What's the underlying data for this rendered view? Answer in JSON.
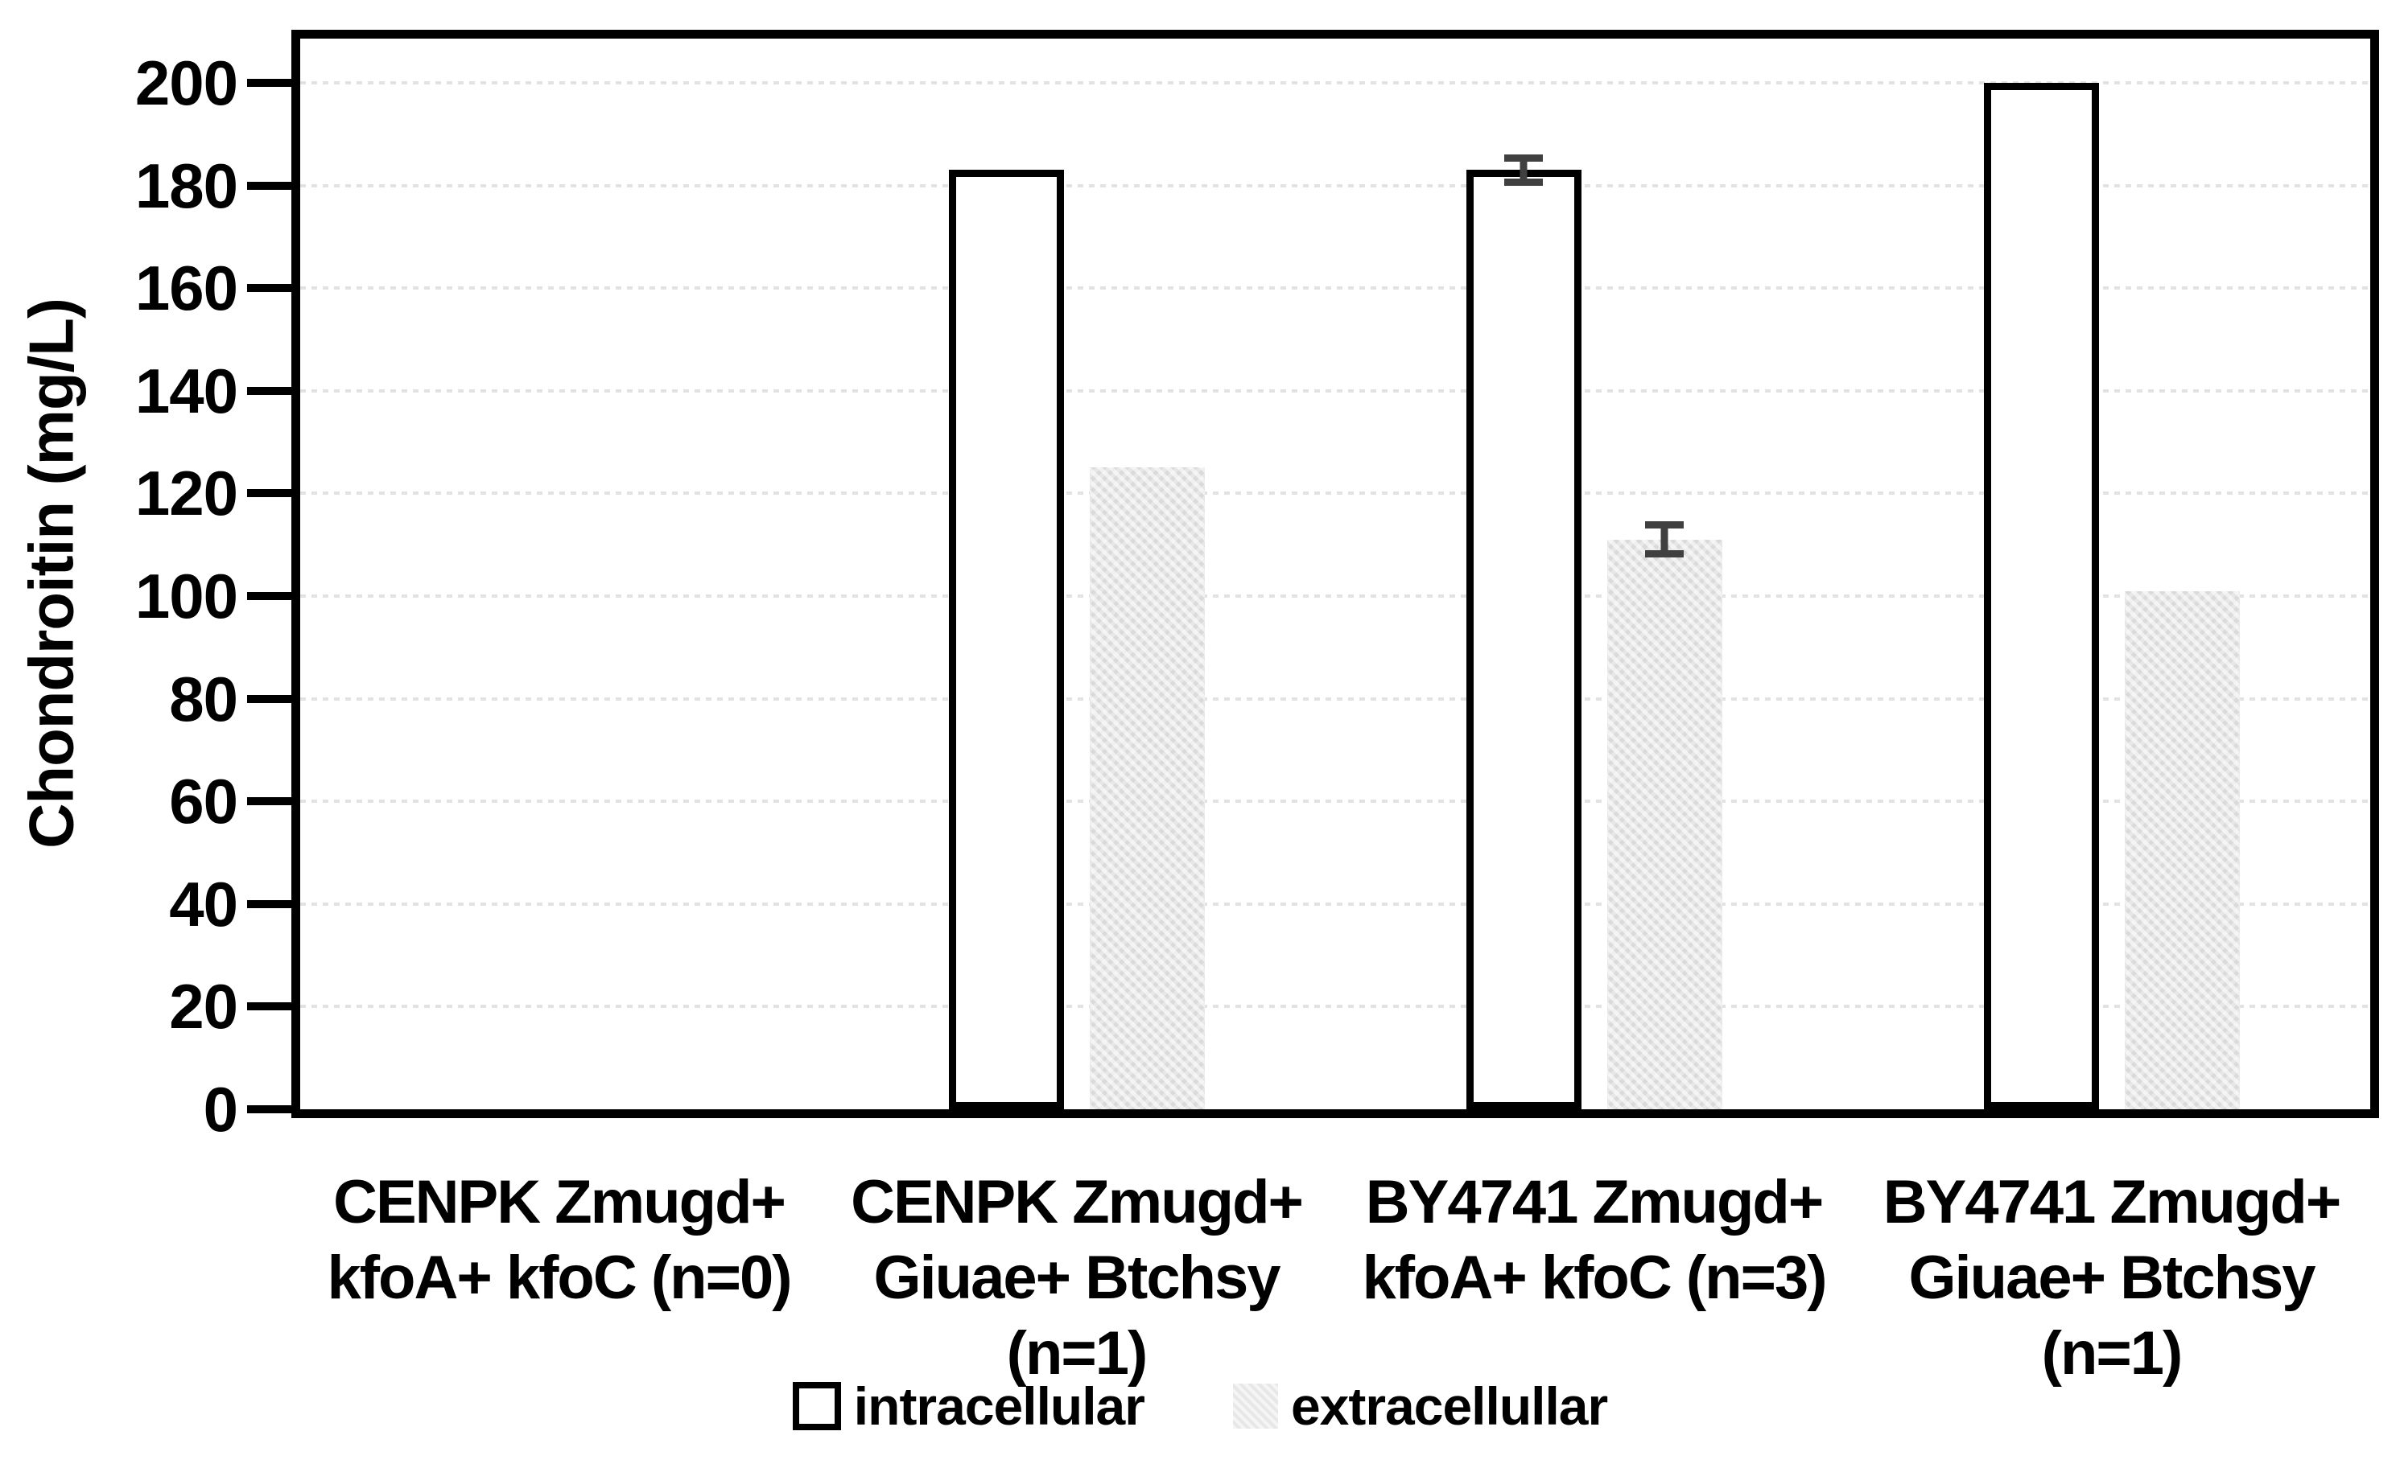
{
  "figure": {
    "background_color": "#ffffff"
  },
  "chart_data": {
    "type": "bar",
    "title": "",
    "ylabel": "Chondroitin (mg/L)",
    "xlabel": "",
    "ylim": [
      0,
      200
    ],
    "ytick_step": 20,
    "ytick_labels": [
      "0",
      "20",
      "40",
      "60",
      "80",
      "100",
      "120",
      "140",
      "160",
      "180",
      "200"
    ],
    "grid": true,
    "legend_position": "bottom",
    "categories": [
      "CENPK Zmugd+\nkfoA+ kfoC (n=0)",
      "CENPK Zmugd+\nGiuae+ Btchsy\n(n=1)",
      "BY4741 Zmugd+\nkfoA+ kfoC (n=3)",
      "BY4741 Zmugd+\nGiuae+ Btchsy\n(n=1)"
    ],
    "series": [
      {
        "name": "intracellular",
        "values": [
          0,
          183,
          183,
          200
        ],
        "errors": [
          null,
          null,
          3,
          null
        ],
        "fill": "#ffffff",
        "border_color": "#000000"
      },
      {
        "name": "extracellullar",
        "values": [
          0,
          125,
          111,
          101
        ],
        "errors": [
          null,
          null,
          3.5,
          null
        ],
        "fill": "#e7e7e7",
        "border_color": null
      }
    ],
    "error_bar_color": "#404040",
    "gridline_color": "#e2e2e2",
    "axis_color": "#000000"
  }
}
